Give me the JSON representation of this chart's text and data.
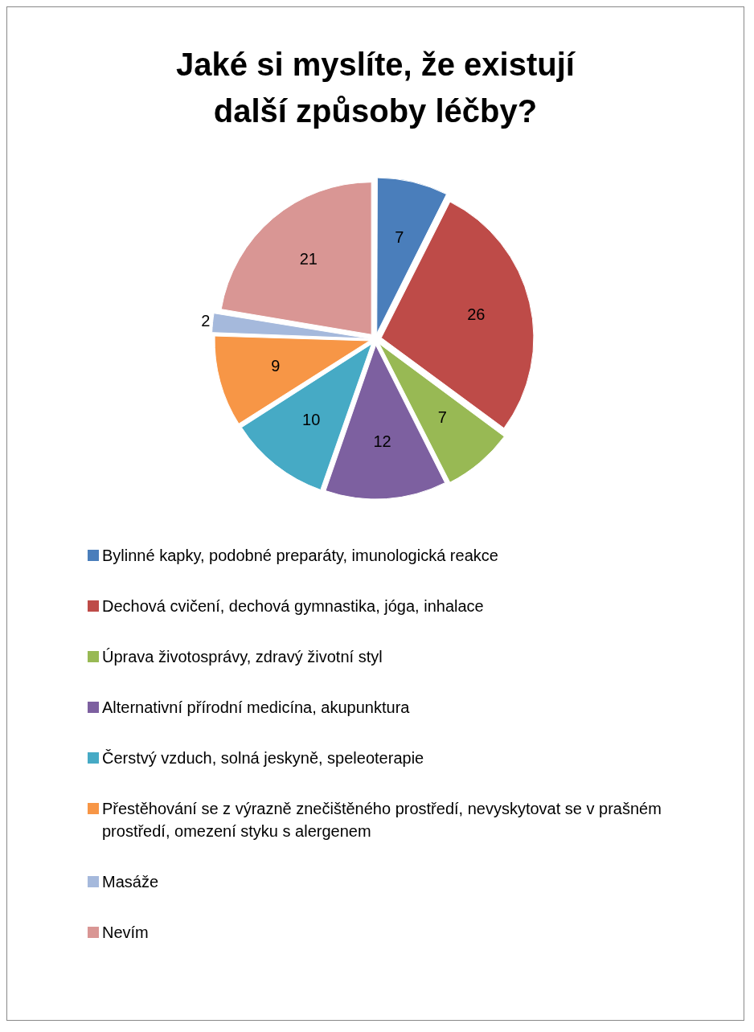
{
  "chart_data": {
    "type": "pie",
    "title": "Jaké si myslíte, že existují další způsoby léčby?",
    "categories": [
      "Bylinné kapky, podobné preparáty, imunologická reakce",
      "Dechová cvičení, dechová gymnastika, jóga, inhalace",
      "Úprava životosprávy, zdravý životní styl",
      "Alternativní přírodní medicína, akupunktura",
      "Čerstvý vzduch, solná jeskyně, speleoterapie",
      "Přestěhování se z výrazně znečištěného prostředí, nevyskytovat se v prašném prostředí, omezení styku s alergenem",
      "Masáže",
      "Nevím"
    ],
    "values": [
      7,
      26,
      7,
      12,
      10,
      9,
      2,
      21
    ],
    "colors": [
      "#4a7ebb",
      "#be4b48",
      "#98b954",
      "#7d60a0",
      "#46aac5",
      "#f79646",
      "#a5b9dc",
      "#d99694"
    ],
    "data_labels": true,
    "legend": "bottom"
  }
}
